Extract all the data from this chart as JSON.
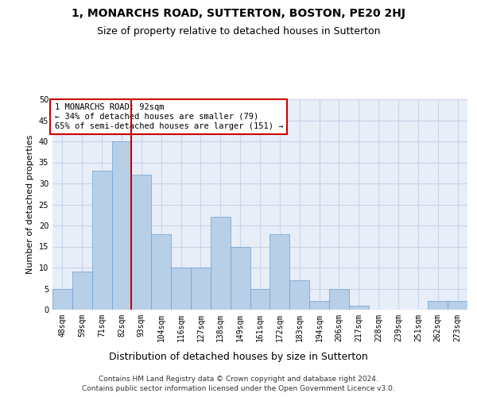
{
  "title": "1, MONARCHS ROAD, SUTTERTON, BOSTON, PE20 2HJ",
  "subtitle": "Size of property relative to detached houses in Sutterton",
  "xlabel": "Distribution of detached houses by size in Sutterton",
  "ylabel": "Number of detached properties",
  "categories": [
    "48sqm",
    "59sqm",
    "71sqm",
    "82sqm",
    "93sqm",
    "104sqm",
    "116sqm",
    "127sqm",
    "138sqm",
    "149sqm",
    "161sqm",
    "172sqm",
    "183sqm",
    "194sqm",
    "206sqm",
    "217sqm",
    "228sqm",
    "239sqm",
    "251sqm",
    "262sqm",
    "273sqm"
  ],
  "values": [
    5,
    9,
    33,
    40,
    32,
    18,
    10,
    10,
    22,
    15,
    5,
    18,
    7,
    2,
    5,
    1,
    0,
    0,
    0,
    2,
    2
  ],
  "bar_color": "#b8cfe8",
  "bar_edge_color": "#6a9fd0",
  "vline_color": "#cc0000",
  "vline_x_index": 4,
  "annotation_text": "1 MONARCHS ROAD: 92sqm\n← 34% of detached houses are smaller (79)\n65% of semi-detached houses are larger (151) →",
  "annotation_box_color": "#ffffff",
  "annotation_box_edge_color": "#cc0000",
  "ylim": [
    0,
    50
  ],
  "yticks": [
    0,
    5,
    10,
    15,
    20,
    25,
    30,
    35,
    40,
    45,
    50
  ],
  "grid_color": "#c8d4e8",
  "bg_color": "#e8eef8",
  "footer_line1": "Contains HM Land Registry data © Crown copyright and database right 2024.",
  "footer_line2": "Contains public sector information licensed under the Open Government Licence v3.0.",
  "title_fontsize": 10,
  "subtitle_fontsize": 9,
  "tick_fontsize": 7,
  "ylabel_fontsize": 8,
  "xlabel_fontsize": 9,
  "footer_fontsize": 6.5,
  "annotation_fontsize": 7.5
}
